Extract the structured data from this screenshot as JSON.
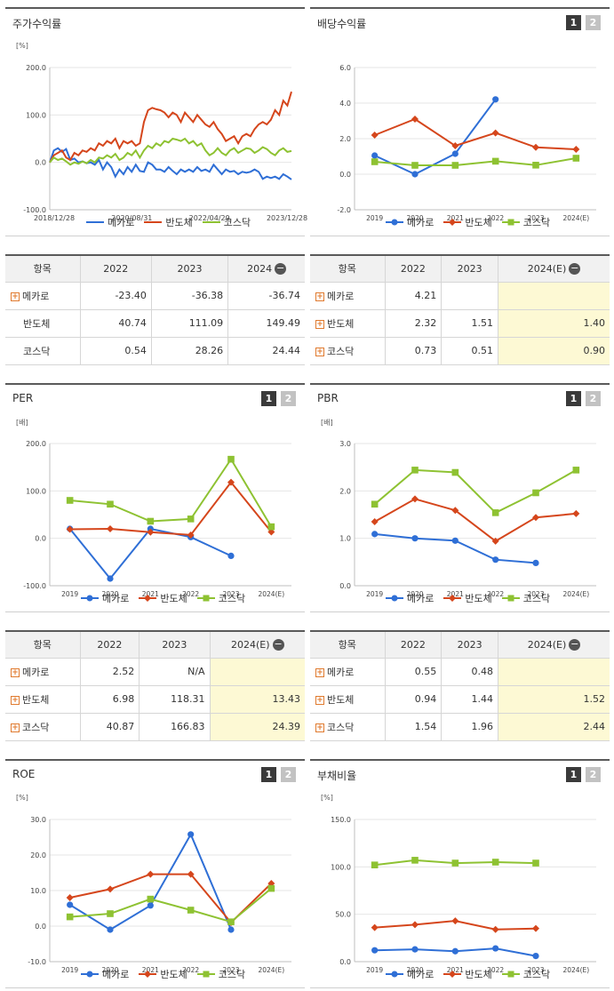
{
  "colors": {
    "mecaro": "#2f6fd6",
    "semi": "#d5461c",
    "kosdaq": "#8ec232"
  },
  "legend": [
    "메카로",
    "반도체",
    "코스닥"
  ],
  "pager": [
    "1",
    "2"
  ],
  "stock": {
    "title": "주가수익률",
    "unit": "[%]",
    "table": {
      "header": "항목",
      "years": [
        "2022",
        "2023",
        "2024"
      ],
      "rows": [
        {
          "name": "메카로",
          "values": [
            "-23.40",
            "-36.38",
            "-36.74"
          ]
        },
        {
          "name": "반도체",
          "values": [
            "40.74",
            "111.09",
            "149.49"
          ]
        },
        {
          "name": "코스닥",
          "values": [
            "0.54",
            "28.26",
            "24.44"
          ]
        }
      ]
    }
  },
  "dividend": {
    "title": "배당수익률",
    "unit": "",
    "table": {
      "header": "항목",
      "years": [
        "2022",
        "2023",
        "2024(E)"
      ],
      "rows": [
        {
          "name": "메카로",
          "values": [
            "4.21",
            "",
            ""
          ]
        },
        {
          "name": "반도체",
          "values": [
            "2.32",
            "1.51",
            "1.40"
          ]
        },
        {
          "name": "코스닥",
          "values": [
            "0.73",
            "0.51",
            "0.90"
          ]
        }
      ]
    }
  },
  "per": {
    "title": "PER",
    "unit": "[배]",
    "table": {
      "header": "항목",
      "years": [
        "2022",
        "2023",
        "2024(E)"
      ],
      "rows": [
        {
          "name": "메카로",
          "values": [
            "2.52",
            "N/A",
            ""
          ]
        },
        {
          "name": "반도체",
          "values": [
            "6.98",
            "118.31",
            "13.43"
          ]
        },
        {
          "name": "코스닥",
          "values": [
            "40.87",
            "166.83",
            "24.39"
          ]
        }
      ]
    }
  },
  "pbr": {
    "title": "PBR",
    "unit": "[배]",
    "table": {
      "header": "항목",
      "years": [
        "2022",
        "2023",
        "2024(E)"
      ],
      "rows": [
        {
          "name": "메카로",
          "values": [
            "0.55",
            "0.48",
            ""
          ]
        },
        {
          "name": "반도체",
          "values": [
            "0.94",
            "1.44",
            "1.52"
          ]
        },
        {
          "name": "코스닥",
          "values": [
            "1.54",
            "1.96",
            "2.44"
          ]
        }
      ]
    }
  },
  "roe": {
    "title": "ROE",
    "unit": "[%]"
  },
  "debt": {
    "title": "부채비율",
    "unit": "[%]"
  },
  "chart_data": [
    {
      "id": "stock",
      "type": "line",
      "title": "주가수익률",
      "ylabel": "[%]",
      "ylim": [
        -100,
        200
      ],
      "yticks": [
        "200.0",
        "100.0",
        "0.0",
        "-100.0"
      ],
      "xticks": [
        "2018/12/28",
        "2020/08/31",
        "2022/04/29",
        "2023/12/28"
      ],
      "series": [
        {
          "name": "메카로",
          "values": [
            0,
            25,
            30,
            22,
            28,
            5,
            8,
            0,
            2,
            -2,
            0,
            -5,
            5,
            -15,
            0,
            -10,
            -30,
            -15,
            -25,
            -10,
            -20,
            -5,
            -18,
            -20,
            0,
            -5,
            -15,
            -15,
            -20,
            -10,
            -18,
            -25,
            -15,
            -20,
            -15,
            -20,
            -10,
            -18,
            -15,
            -20,
            -5,
            -15,
            -25,
            -15,
            -20,
            -18,
            -25,
            -20,
            -22,
            -20,
            -15,
            -20,
            -35,
            -30,
            -33,
            -30,
            -35,
            -25,
            -30,
            -36
          ]
        },
        {
          "name": "반도체",
          "values": [
            0,
            15,
            20,
            25,
            10,
            5,
            20,
            15,
            25,
            22,
            30,
            25,
            40,
            35,
            45,
            40,
            50,
            30,
            45,
            40,
            45,
            35,
            40,
            85,
            110,
            115,
            112,
            110,
            105,
            95,
            105,
            100,
            85,
            105,
            95,
            85,
            100,
            90,
            80,
            75,
            85,
            70,
            60,
            45,
            50,
            55,
            40,
            55,
            60,
            55,
            70,
            80,
            85,
            80,
            90,
            110,
            100,
            130,
            120,
            149
          ]
        },
        {
          "name": "코스닥",
          "values": [
            0,
            10,
            5,
            8,
            2,
            -5,
            0,
            -3,
            2,
            -2,
            5,
            0,
            10,
            8,
            15,
            10,
            18,
            5,
            10,
            20,
            15,
            25,
            10,
            25,
            35,
            30,
            40,
            35,
            45,
            42,
            50,
            48,
            45,
            50,
            40,
            45,
            35,
            40,
            25,
            15,
            20,
            30,
            20,
            15,
            25,
            30,
            20,
            25,
            30,
            28,
            20,
            25,
            32,
            28,
            20,
            15,
            25,
            30,
            22,
            24
          ]
        }
      ]
    },
    {
      "id": "dividend",
      "type": "line",
      "title": "배당수익률",
      "ylim": [
        -2,
        6
      ],
      "yticks": [
        "6.0",
        "4.0",
        "2.0",
        "0.0",
        "-2.0"
      ],
      "categories": [
        "2019",
        "2020",
        "2021",
        "2022",
        "2023",
        "2024(E)"
      ],
      "series": [
        {
          "name": "메카로",
          "values": [
            1.05,
            0.0,
            1.15,
            4.21,
            null,
            null
          ]
        },
        {
          "name": "반도체",
          "values": [
            2.2,
            3.1,
            1.6,
            2.32,
            1.51,
            1.4
          ]
        },
        {
          "name": "코스닥",
          "values": [
            0.7,
            0.5,
            0.5,
            0.73,
            0.51,
            0.9
          ]
        }
      ]
    },
    {
      "id": "per",
      "type": "line",
      "title": "PER",
      "ylabel": "[배]",
      "ylim": [
        -100,
        200
      ],
      "yticks": [
        "200.0",
        "100.0",
        "0.0",
        "-100.0"
      ],
      "categories": [
        "2019",
        "2020",
        "2021",
        "2022",
        "2023",
        "2024(E)"
      ],
      "series": [
        {
          "name": "메카로",
          "values": [
            20,
            -85,
            20,
            2.52,
            -37,
            null
          ]
        },
        {
          "name": "반도체",
          "values": [
            19,
            20,
            13,
            6.98,
            118.31,
            13.43
          ]
        },
        {
          "name": "코스닥",
          "values": [
            80,
            72,
            36,
            40.87,
            166.83,
            24.39
          ]
        }
      ]
    },
    {
      "id": "pbr",
      "type": "line",
      "title": "PBR",
      "ylabel": "[배]",
      "ylim": [
        0,
        3
      ],
      "yticks": [
        "3.0",
        "2.0",
        "1.0",
        "0.0"
      ],
      "categories": [
        "2019",
        "2020",
        "2021",
        "2022",
        "2023",
        "2024(E)"
      ],
      "series": [
        {
          "name": "메카로",
          "values": [
            1.09,
            1.0,
            0.95,
            0.55,
            0.48,
            null
          ]
        },
        {
          "name": "반도체",
          "values": [
            1.35,
            1.83,
            1.59,
            0.94,
            1.44,
            1.52
          ]
        },
        {
          "name": "코스닥",
          "values": [
            1.72,
            2.44,
            2.39,
            1.54,
            1.96,
            2.44
          ]
        }
      ]
    },
    {
      "id": "roe",
      "type": "line",
      "title": "ROE",
      "ylabel": "[%]",
      "ylim": [
        -10,
        30
      ],
      "yticks": [
        "30.0",
        "20.0",
        "10.0",
        "0.0",
        "-10.0"
      ],
      "categories": [
        "2019",
        "2020",
        "2021",
        "2022",
        "2023",
        "2024(E)"
      ],
      "series": [
        {
          "name": "메카로",
          "values": [
            6.0,
            -1.0,
            5.8,
            25.8,
            -1.0,
            null
          ]
        },
        {
          "name": "반도체",
          "values": [
            8.0,
            10.4,
            14.6,
            14.6,
            1.0,
            12.0
          ]
        },
        {
          "name": "코스닥",
          "values": [
            2.6,
            3.5,
            7.6,
            4.5,
            1.2,
            10.6
          ]
        }
      ]
    },
    {
      "id": "debt",
      "type": "line",
      "title": "부채비율",
      "ylabel": "[%]",
      "ylim": [
        0,
        150
      ],
      "yticks": [
        "150.0",
        "100.0",
        "50.0",
        "0.0"
      ],
      "categories": [
        "2019",
        "2020",
        "2021",
        "2022",
        "2023",
        "2024(E)"
      ],
      "series": [
        {
          "name": "메카로",
          "values": [
            12,
            13,
            11,
            14,
            6,
            null
          ]
        },
        {
          "name": "반도체",
          "values": [
            36,
            39,
            43,
            34,
            35,
            null
          ]
        },
        {
          "name": "코스닥",
          "values": [
            102,
            107,
            104,
            105,
            104,
            null
          ]
        }
      ]
    }
  ]
}
